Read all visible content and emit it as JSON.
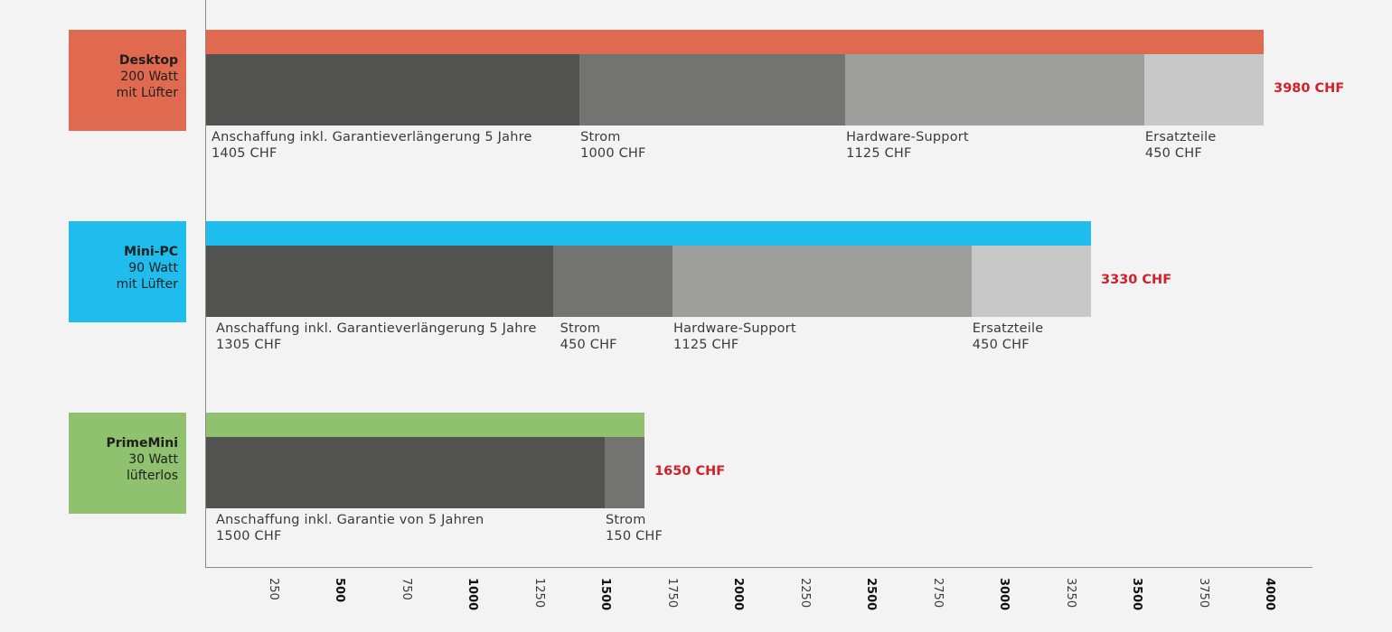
{
  "chart_data": {
    "type": "bar",
    "orientation": "horizontal-stacked",
    "xlim": [
      0,
      4000
    ],
    "ticks": [
      250,
      500,
      750,
      1000,
      1250,
      1500,
      1750,
      2000,
      2250,
      2500,
      2750,
      3000,
      3250,
      3500,
      3750,
      4000
    ],
    "major_ticks": [
      500,
      1000,
      1500,
      2000,
      2500,
      3000,
      3500,
      4000
    ],
    "colors": {
      "segments": [
        "#525250",
        "#737372",
        "#9e9e9d",
        "#c8c8c8"
      ],
      "total_text": "#d0202a"
    },
    "rows": [
      {
        "name": "Desktop",
        "line2": "200 Watt",
        "line3": "mit Lüfter",
        "color": "#e06a50",
        "total": 3980,
        "total_label": "3980 CHF",
        "segments": [
          {
            "label": "Anschaffung inkl. Garantieverlängerung 5 Jahre",
            "value": 1405,
            "value_label": "1405 CHF"
          },
          {
            "label": "Strom",
            "value": 1000,
            "value_label": "1000 CHF"
          },
          {
            "label": "Hardware-Support",
            "value": 1125,
            "value_label": "1125 CHF"
          },
          {
            "label": "Ersatzteile",
            "value": 450,
            "value_label": "450 CHF"
          }
        ]
      },
      {
        "name": "Mini-PC",
        "line2": "90 Watt",
        "line3": "mit Lüfter",
        "color": "#1fbdee",
        "total": 3330,
        "total_label": "3330 CHF",
        "segments": [
          {
            "label": "Anschaffung inkl. Garantieverlängerung 5 Jahre",
            "value": 1305,
            "value_label": "1305 CHF"
          },
          {
            "label": "Strom",
            "value": 450,
            "value_label": "450 CHF"
          },
          {
            "label": "Hardware-Support",
            "value": 1125,
            "value_label": "1125 CHF"
          },
          {
            "label": "Ersatzteile",
            "value": 450,
            "value_label": "450 CHF"
          }
        ]
      },
      {
        "name": "PrimeMini",
        "line2": "30 Watt",
        "line3": "lüfterlos",
        "color": "#8fc16e",
        "total": 1650,
        "total_label": "1650 CHF",
        "segments": [
          {
            "label": "Anschaffung inkl. Garantie von 5 Jahren",
            "value": 1500,
            "value_label": "1500 CHF"
          },
          {
            "label": "Strom",
            "value": 150,
            "value_label": "150 CHF"
          }
        ]
      }
    ]
  }
}
